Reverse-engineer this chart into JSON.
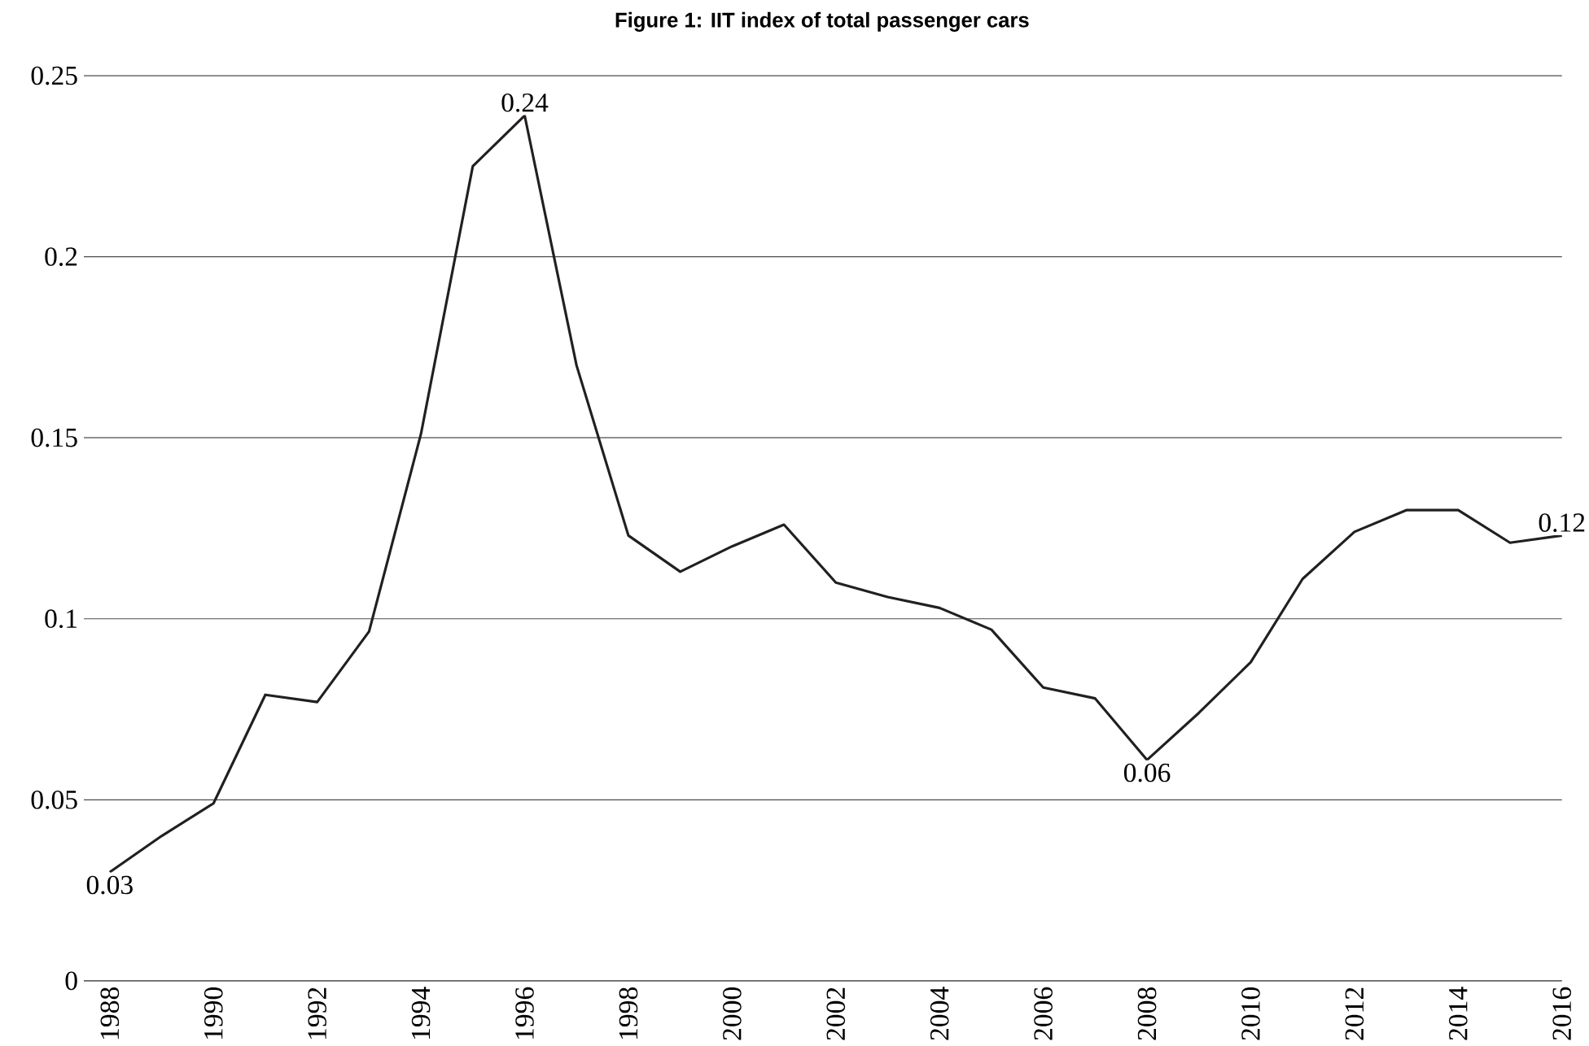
{
  "chart_data": {
    "type": "line",
    "title": "Figure 1: IIT index of total passenger cars",
    "x": [
      1988,
      1989,
      1990,
      1991,
      1992,
      1993,
      1994,
      1995,
      1996,
      1997,
      1998,
      1999,
      2000,
      2001,
      2002,
      2003,
      2004,
      2005,
      2006,
      2007,
      2008,
      2009,
      2010,
      2011,
      2012,
      2013,
      2014,
      2015,
      2016
    ],
    "series": [
      {
        "color": "#231f20",
        "values": [
          0.03,
          0.04,
          0.049,
          0.079,
          0.077,
          0.0965,
          0.151,
          0.225,
          0.239,
          0.17,
          0.123,
          0.113,
          0.12,
          0.126,
          0.11,
          0.106,
          0.103,
          0.097,
          0.081,
          0.078,
          0.061,
          0.074,
          0.088,
          0.111,
          0.124,
          0.13,
          0.13,
          0.121,
          0.123
        ],
        "value_labels": [
          "0.03",
          null,
          null,
          null,
          null,
          null,
          null,
          null,
          "0.24",
          null,
          null,
          null,
          null,
          null,
          null,
          null,
          null,
          null,
          null,
          null,
          "0.06",
          null,
          null,
          null,
          null,
          null,
          null,
          null,
          "0.12"
        ]
      }
    ],
    "xlim": [
      1987.5,
      2016
    ],
    "xticks": [
      1988,
      1990,
      1992,
      1994,
      1996,
      1998,
      2000,
      2002,
      2004,
      2006,
      2008,
      2010,
      2012,
      2014,
      2016
    ],
    "ylim": [
      0,
      0.25
    ],
    "yticks": [
      0,
      0.05,
      0.1,
      0.15,
      0.2,
      0.25
    ],
    "grid": "y",
    "legend": false,
    "marker": "none",
    "line_style": "solid"
  }
}
